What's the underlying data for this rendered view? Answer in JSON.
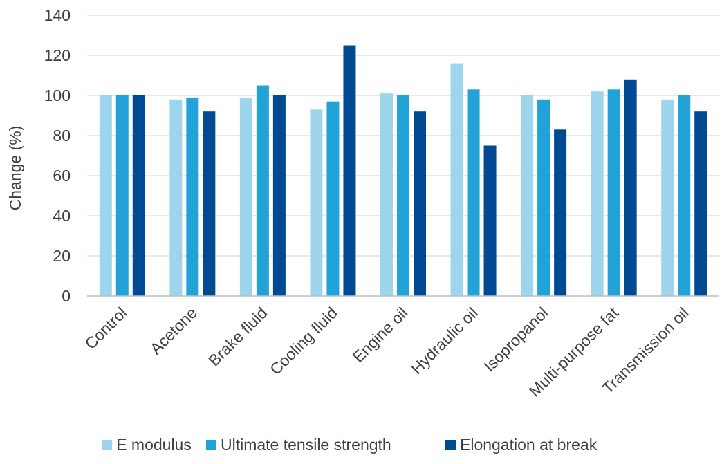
{
  "chart_data": {
    "type": "bar",
    "title": "",
    "xlabel": "",
    "ylabel": "Change (%)",
    "ylim": [
      0,
      140
    ],
    "yticks": [
      0,
      20,
      40,
      60,
      80,
      100,
      120,
      140
    ],
    "grid": "horizontal",
    "legend_position": "bottom",
    "categories": [
      "Control",
      "Acetone",
      "Brake fluid",
      "Cooling fluid",
      "Engine oil",
      "Hydraulic oil",
      "Isopropanol",
      "Multi-purpose fat",
      "Transmission oil"
    ],
    "series": [
      {
        "name": "E modulus",
        "color": "#9dd5ec",
        "values": [
          100,
          98,
          99,
          93,
          101,
          116,
          100,
          102,
          98
        ]
      },
      {
        "name": "Ultimate tensile strength",
        "color": "#21a3d8",
        "values": [
          100,
          99,
          105,
          97,
          100,
          103,
          98,
          103,
          100
        ]
      },
      {
        "name": "Elongation at break",
        "color": "#004a93",
        "values": [
          100,
          92,
          100,
          125,
          92,
          75,
          83,
          108,
          92
        ]
      }
    ]
  }
}
